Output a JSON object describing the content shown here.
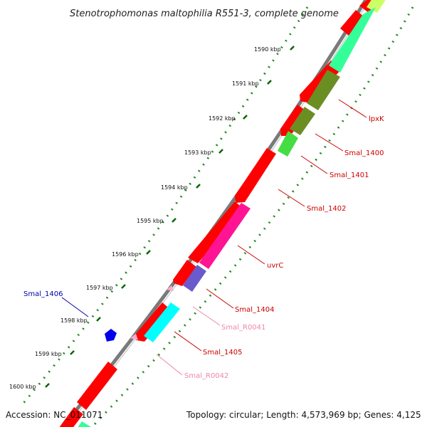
{
  "title": "Stenotrophomonas maltophilia R551-3, complete genome",
  "footer": {
    "accession": "Accession: NC_011071",
    "topology": "Topology: circular; Length: 4,573,969 bp; Genes: 4,125"
  },
  "ticks": [
    "1590 kbp",
    "1591 kbp",
    "1592 kbp",
    "1593 kbp",
    "1594 kbp",
    "1595 kbp",
    "1596 kbp",
    "1597 kbp",
    "1598 kbp",
    "1599 kbp",
    "1600 kbp"
  ],
  "gene_labels": [
    {
      "text": "lpxK",
      "color": "#cc0000"
    },
    {
      "text": "Smal_1400",
      "color": "#cc0000"
    },
    {
      "text": "Smal_1401",
      "color": "#cc0000"
    },
    {
      "text": "Smal_1402",
      "color": "#cc0000"
    },
    {
      "text": "uvrC",
      "color": "#cc0000"
    },
    {
      "text": "Smal_1404",
      "color": "#cc0000"
    },
    {
      "text": "Smal_R0041",
      "color": "#ee88aa"
    },
    {
      "text": "Smal_1405",
      "color": "#cc0000"
    },
    {
      "text": "Smal_R0042",
      "color": "#ee88aa"
    },
    {
      "text": "Smal_1406",
      "color": "#0000aa"
    }
  ],
  "colors": {
    "gene_red": "#ff0000",
    "rna_pink": "#ffaacc",
    "backbone": "#7a7a7a",
    "dotted_ring": "#228822",
    "tick_ring": "#006600",
    "blue_gene": "#0000ee",
    "cog_green": "#33ff99",
    "cog_olive": "#6b8e23",
    "cog_lime": "#44dd44",
    "cog_magenta": "#ff1493",
    "cog_slate": "#6a5acd",
    "cog_cyan": "#00ffff",
    "cog_yellow": "#ccff66"
  }
}
